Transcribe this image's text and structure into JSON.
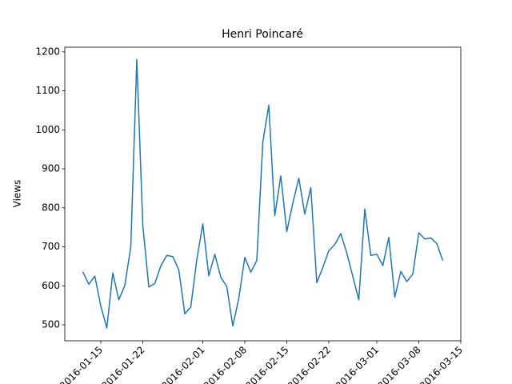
{
  "chart_data": {
    "type": "line",
    "title": "Henri Poincaré",
    "y_label": "Views",
    "color": "#1f77b4",
    "x": [
      "2016-01-12",
      "2016-01-13",
      "2016-01-14",
      "2016-01-15",
      "2016-01-16",
      "2016-01-17",
      "2016-01-18",
      "2016-01-19",
      "2016-01-20",
      "2016-01-21",
      "2016-01-22",
      "2016-01-23",
      "2016-01-24",
      "2016-01-25",
      "2016-01-26",
      "2016-01-27",
      "2016-01-28",
      "2016-01-29",
      "2016-01-30",
      "2016-01-31",
      "2016-02-01",
      "2016-02-02",
      "2016-02-03",
      "2016-02-04",
      "2016-02-05",
      "2016-02-06",
      "2016-02-07",
      "2016-02-08",
      "2016-02-09",
      "2016-02-10",
      "2016-02-11",
      "2016-02-12",
      "2016-02-13",
      "2016-02-14",
      "2016-02-15",
      "2016-02-16",
      "2016-02-17",
      "2016-02-18",
      "2016-02-19",
      "2016-02-20",
      "2016-02-21",
      "2016-02-22",
      "2016-02-23",
      "2016-02-24",
      "2016-02-25",
      "2016-02-26",
      "2016-02-27",
      "2016-02-28",
      "2016-02-29",
      "2016-03-01",
      "2016-03-02",
      "2016-03-03",
      "2016-03-04",
      "2016-03-05",
      "2016-03-06",
      "2016-03-07",
      "2016-03-08",
      "2016-03-09",
      "2016-03-10",
      "2016-03-11",
      "2016-03-12"
    ],
    "values": [
      636,
      604,
      625,
      548,
      492,
      633,
      564,
      601,
      700,
      1180,
      755,
      597,
      606,
      651,
      678,
      675,
      641,
      528,
      546,
      667,
      759,
      626,
      681,
      622,
      598,
      497,
      568,
      673,
      635,
      665,
      968,
      1063,
      780,
      882,
      739,
      812,
      876,
      784,
      852,
      608,
      647,
      690,
      706,
      734,
      684,
      624,
      564,
      797,
      678,
      681,
      652,
      724,
      571,
      637,
      611,
      630,
      736,
      720,
      723,
      708,
      665
    ],
    "xlim": [
      "2016-01-09",
      "2016-03-15"
    ],
    "xticks": [
      "2016-01-15",
      "2016-01-22",
      "2016-02-01",
      "2016-02-08",
      "2016-02-15",
      "2016-02-22",
      "2016-03-01",
      "2016-03-08",
      "2016-03-15"
    ],
    "ylim": [
      459,
      1212
    ],
    "yticks": [
      500,
      600,
      700,
      800,
      900,
      1000,
      1100,
      1200
    ]
  }
}
